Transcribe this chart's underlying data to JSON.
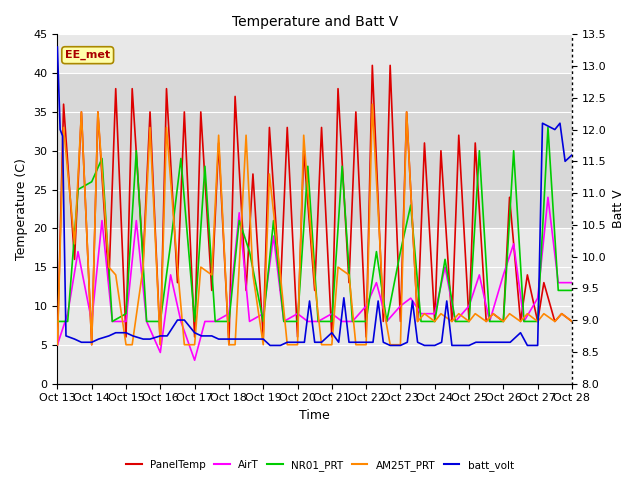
{
  "title": "Temperature and Batt V",
  "xlabel": "Time",
  "ylabel_left": "Temperature (C)",
  "ylabel_right": "Batt V",
  "annotation": "EE_met",
  "xlim": [
    0,
    15
  ],
  "ylim_left": [
    0,
    45
  ],
  "ylim_right": [
    8.0,
    13.5
  ],
  "xtick_labels": [
    "Oct 13",
    "Oct 14",
    "Oct 15",
    "Oct 16",
    "Oct 17",
    "Oct 18",
    "Oct 19",
    "Oct 20",
    "Oct 21",
    "Oct 22",
    "Oct 23",
    "Oct 24",
    "Oct 25",
    "Oct 26",
    "Oct 27",
    "Oct 28"
  ],
  "hspan_lo": 20,
  "hspan_hi": 40,
  "hspan_color": "#d8d8d8",
  "plot_bg_color": "#e8e8e8",
  "fig_bg_color": "#ffffff",
  "gridcolor": "#ffffff",
  "series_colors": {
    "PanelTemp": "#dd0000",
    "AirT": "#ff00ff",
    "NR01_PRT": "#00cc00",
    "AM25T_PRT": "#ff8800",
    "batt_volt": "#0000dd"
  },
  "lw": 1.2,
  "panel_temp": {
    "x": [
      0.0,
      0.18,
      0.5,
      0.7,
      1.0,
      1.18,
      1.5,
      1.7,
      2.0,
      2.18,
      2.5,
      2.7,
      3.0,
      3.18,
      3.5,
      3.7,
      4.0,
      4.18,
      4.5,
      4.7,
      5.0,
      5.18,
      5.5,
      5.7,
      6.0,
      6.18,
      6.5,
      6.7,
      7.0,
      7.18,
      7.5,
      7.7,
      8.0,
      8.18,
      8.5,
      8.7,
      9.0,
      9.18,
      9.5,
      9.7,
      10.0,
      10.18,
      10.5,
      10.7,
      11.0,
      11.18,
      11.5,
      11.7,
      12.0,
      12.18,
      12.5,
      12.7,
      13.0,
      13.18,
      13.5,
      13.7,
      14.0,
      14.18,
      14.5,
      14.7,
      15.0
    ],
    "y": [
      5,
      36,
      16,
      35,
      5,
      35,
      13,
      38,
      6,
      38,
      16,
      35,
      5,
      38,
      13,
      35,
      6,
      35,
      12,
      31,
      5,
      37,
      12,
      27,
      6,
      33,
      12,
      33,
      6,
      30,
      12,
      33,
      6,
      38,
      13,
      35,
      6,
      41,
      8,
      41,
      8,
      35,
      8,
      31,
      8,
      30,
      8,
      32,
      8,
      31,
      8,
      9,
      8,
      24,
      8,
      14,
      8,
      13,
      8,
      9,
      8
    ]
  },
  "air_t": {
    "x": [
      0.0,
      0.3,
      0.6,
      1.0,
      1.3,
      1.6,
      2.0,
      2.3,
      2.6,
      3.0,
      3.3,
      3.6,
      4.0,
      4.3,
      4.6,
      5.0,
      5.3,
      5.6,
      6.0,
      6.3,
      6.6,
      7.0,
      7.3,
      7.6,
      8.0,
      8.3,
      8.6,
      9.0,
      9.3,
      9.6,
      10.0,
      10.3,
      10.6,
      11.0,
      11.3,
      11.6,
      12.0,
      12.3,
      12.6,
      13.0,
      13.3,
      13.6,
      14.0,
      14.3,
      14.6,
      15.0
    ],
    "y": [
      5,
      9,
      17,
      8,
      21,
      8,
      8,
      21,
      8,
      4,
      14,
      8,
      3,
      8,
      8,
      9,
      22,
      8,
      9,
      19,
      8,
      9,
      8,
      8,
      9,
      8,
      8,
      10,
      13,
      8,
      10,
      11,
      9,
      9,
      15,
      8,
      10,
      14,
      8,
      14,
      18,
      8,
      11,
      24,
      13,
      13
    ]
  },
  "nr01_prt": {
    "x": [
      0.0,
      0.3,
      0.6,
      1.0,
      1.3,
      1.6,
      2.0,
      2.3,
      2.6,
      3.0,
      3.3,
      3.6,
      4.0,
      4.3,
      4.6,
      5.0,
      5.3,
      5.6,
      6.0,
      6.3,
      6.6,
      7.0,
      7.3,
      7.6,
      8.0,
      8.3,
      8.6,
      9.0,
      9.3,
      9.6,
      10.0,
      10.3,
      10.6,
      11.0,
      11.3,
      11.6,
      12.0,
      12.3,
      12.6,
      13.0,
      13.3,
      13.6,
      14.0,
      14.3,
      14.6,
      15.0
    ],
    "y": [
      8,
      8,
      25,
      26,
      29,
      8,
      9,
      30,
      8,
      8,
      18,
      29,
      8,
      28,
      8,
      8,
      21,
      17,
      8,
      21,
      8,
      8,
      28,
      8,
      8,
      28,
      8,
      8,
      17,
      8,
      17,
      23,
      8,
      8,
      16,
      8,
      8,
      30,
      8,
      8,
      30,
      8,
      8,
      33,
      12,
      12
    ]
  },
  "am25t_prt": {
    "x": [
      0.0,
      0.18,
      0.5,
      0.7,
      1.0,
      1.18,
      1.5,
      1.7,
      2.0,
      2.18,
      2.5,
      2.7,
      3.0,
      3.18,
      3.5,
      3.7,
      4.0,
      4.18,
      4.5,
      4.7,
      5.0,
      5.18,
      5.5,
      5.7,
      6.0,
      6.18,
      6.5,
      6.7,
      7.0,
      7.18,
      7.5,
      7.7,
      8.0,
      8.18,
      8.5,
      8.7,
      9.0,
      9.18,
      9.5,
      9.7,
      10.0,
      10.18,
      10.5,
      10.7,
      11.0,
      11.18,
      11.5,
      11.7,
      12.0,
      12.18,
      12.5,
      12.7,
      13.0,
      13.18,
      13.5,
      13.7,
      14.0,
      14.18,
      14.5,
      14.7,
      15.0
    ],
    "y": [
      5,
      33,
      18,
      35,
      5,
      35,
      15,
      14,
      5,
      5,
      15,
      33,
      5,
      33,
      15,
      5,
      5,
      15,
      14,
      32,
      5,
      5,
      32,
      14,
      5,
      27,
      14,
      5,
      5,
      32,
      13,
      5,
      5,
      15,
      14,
      5,
      5,
      36,
      10,
      5,
      5,
      35,
      8,
      9,
      8,
      9,
      8,
      9,
      8,
      9,
      8,
      9,
      8,
      9,
      8,
      9,
      8,
      9,
      8,
      9,
      8
    ]
  },
  "batt_volt": {
    "x": [
      0.0,
      0.08,
      0.15,
      0.25,
      0.5,
      0.7,
      1.0,
      1.2,
      1.5,
      1.7,
      2.0,
      2.2,
      2.5,
      2.7,
      3.0,
      3.2,
      3.5,
      3.7,
      4.0,
      4.2,
      4.5,
      4.7,
      5.0,
      5.2,
      5.35,
      5.5,
      5.7,
      6.0,
      6.2,
      6.5,
      6.7,
      7.0,
      7.2,
      7.35,
      7.5,
      7.7,
      8.0,
      8.2,
      8.35,
      8.5,
      8.7,
      9.0,
      9.2,
      9.35,
      9.5,
      9.7,
      10.0,
      10.2,
      10.35,
      10.5,
      10.7,
      11.0,
      11.2,
      11.35,
      11.5,
      11.7,
      12.0,
      12.2,
      12.5,
      12.7,
      13.0,
      13.2,
      13.5,
      13.7,
      14.0,
      14.14,
      14.5,
      14.65,
      14.8,
      15.0
    ],
    "y": [
      13.3,
      12.0,
      11.9,
      8.75,
      8.7,
      8.65,
      8.65,
      8.7,
      8.75,
      8.8,
      8.8,
      8.75,
      8.7,
      8.7,
      8.75,
      8.75,
      9.0,
      9.0,
      8.8,
      8.75,
      8.75,
      8.7,
      8.7,
      8.7,
      8.7,
      8.7,
      8.7,
      8.7,
      8.6,
      8.6,
      8.65,
      8.65,
      8.65,
      9.3,
      8.65,
      8.65,
      8.8,
      8.65,
      9.35,
      8.65,
      8.65,
      8.65,
      8.65,
      9.3,
      8.65,
      8.6,
      8.6,
      8.65,
      9.3,
      8.65,
      8.6,
      8.6,
      8.65,
      9.3,
      8.6,
      8.6,
      8.6,
      8.65,
      8.65,
      8.65,
      8.65,
      8.65,
      8.8,
      8.6,
      8.6,
      12.1,
      12.0,
      12.1,
      11.5,
      11.6
    ]
  },
  "yticks_left": [
    0,
    5,
    10,
    15,
    20,
    25,
    30,
    35,
    40,
    45
  ],
  "yticks_right": [
    8.0,
    8.5,
    9.0,
    9.5,
    10.0,
    10.5,
    11.0,
    11.5,
    12.0,
    12.5,
    13.0,
    13.5
  ]
}
